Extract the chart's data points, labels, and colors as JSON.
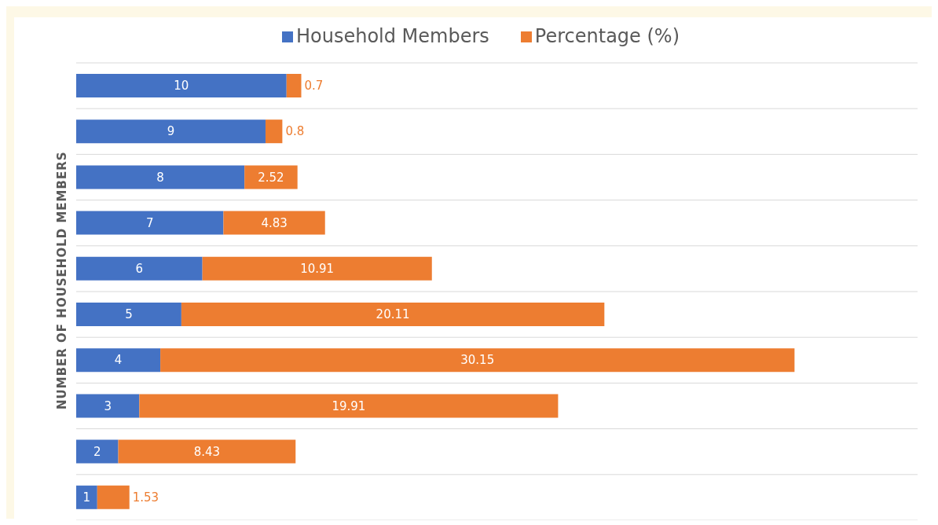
{
  "chart_data": {
    "type": "bar",
    "orientation": "horizontal",
    "stacked": true,
    "ylabel": "NUMBER OF HOUSEHOLD MEMBERS",
    "categories": [
      null,
      null,
      null,
      null,
      null,
      null,
      null,
      null,
      null,
      null
    ],
    "series": [
      {
        "name": "Household Members",
        "color": "#4472c4",
        "values": [
          10,
          9,
          8,
          7,
          6,
          5,
          4,
          3,
          2,
          1
        ]
      },
      {
        "name": "Percentage (%)",
        "color": "#ed7d31",
        "values": [
          0.7,
          0.8,
          2.52,
          4.83,
          10.91,
          20.11,
          30.15,
          19.91,
          8.43,
          1.53
        ]
      }
    ],
    "xlim": [
      0,
      40
    ],
    "data_labels": true,
    "grid": "y",
    "legend": "top"
  }
}
